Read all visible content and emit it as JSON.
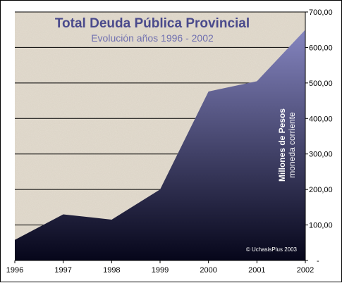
{
  "chart_data": {
    "type": "area",
    "title": "Total Deuda Pública Provincial",
    "subtitle": "Evolución años 1996 - 2002",
    "ylabel": "Millones de Pesos",
    "ylabel_sub": "moneda corriente",
    "credit": "© UchasisPlus 2003",
    "categories": [
      "1996",
      "1997",
      "1998",
      "1999",
      "2000",
      "2001",
      "2002"
    ],
    "values": [
      58,
      130,
      115,
      200,
      476,
      505,
      650
    ],
    "ylim": [
      0,
      700
    ],
    "yticks": [
      "-",
      "100,00",
      "200,00",
      "300,00",
      "400,00",
      "500,00",
      "600,00",
      "700,00"
    ],
    "grid": true,
    "y_axis_side": "right",
    "colors": {
      "plot_background": "#e4ddd0",
      "area_top": "#8585c0",
      "area_bottom": "#06061a",
      "gridline": "#000000"
    }
  }
}
